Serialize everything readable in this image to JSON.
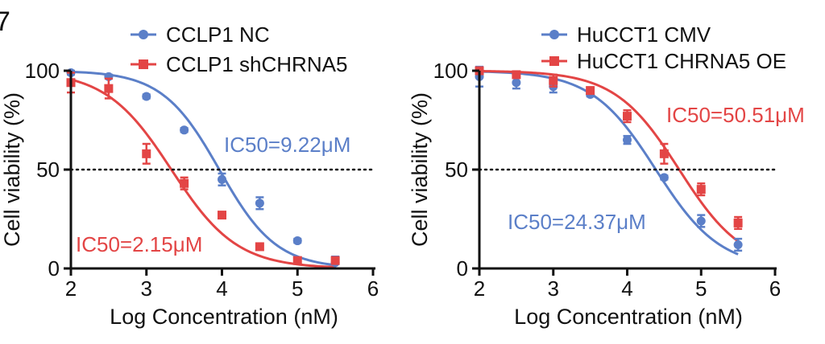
{
  "panel_label": "7",
  "chart_data": [
    {
      "type": "scatter",
      "title": "",
      "xlabel": "Log Concentration (nM)",
      "ylabel": "Cell viability (%)",
      "xlim": [
        2,
        6
      ],
      "ylim": [
        0,
        100
      ],
      "x_ticks": [
        "2",
        "3",
        "4",
        "5",
        "6"
      ],
      "y_ticks": [
        "0",
        "50",
        "100"
      ],
      "reference_line": {
        "y": 50,
        "style": "dotted"
      },
      "legend_position": "top",
      "series": [
        {
          "name": "CCLP1 NC",
          "color": "#5b7fc8",
          "marker": "circle",
          "x": [
            2,
            2.5,
            3,
            3.5,
            4,
            4.5,
            5,
            5.5
          ],
          "y": [
            99,
            97,
            87,
            70,
            45,
            33,
            14,
            3
          ],
          "err": [
            1,
            1,
            1,
            1,
            3,
            3,
            1,
            3
          ],
          "fit": {
            "logIC50": 3.965,
            "hill": 1.15,
            "top": 100,
            "bottom": 0
          }
        },
        {
          "name": "CCLP1 shCHRNA5",
          "color": "#e34545",
          "marker": "square",
          "x": [
            2,
            2.5,
            3,
            3.5,
            4,
            4.5,
            5,
            5.5
          ],
          "y": [
            94,
            91,
            58,
            43,
            27,
            11,
            4,
            4
          ],
          "err": [
            5,
            5,
            5,
            3,
            1,
            1,
            1,
            1
          ],
          "fit": {
            "logIC50": 3.33,
            "hill": 1.0,
            "top": 100,
            "bottom": 0
          }
        }
      ],
      "annotations": [
        {
          "text": "IC50=9.22μM",
          "series": "CCLP1 NC"
        },
        {
          "text": "IC50=2.15μM",
          "series": "CCLP1 shCHRNA5"
        }
      ]
    },
    {
      "type": "scatter",
      "title": "",
      "xlabel": "Log Concentration (nM)",
      "ylabel": "Cell viability (%)",
      "xlim": [
        2,
        6
      ],
      "ylim": [
        0,
        100
      ],
      "x_ticks": [
        "2",
        "3",
        "4",
        "5",
        "6"
      ],
      "y_ticks": [
        "0",
        "50",
        "100"
      ],
      "reference_line": {
        "y": 50,
        "style": "dotted"
      },
      "legend_position": "top-right",
      "series": [
        {
          "name": "HuCCT1 CMV",
          "color": "#5b7fc8",
          "marker": "circle",
          "x": [
            2,
            2.5,
            3,
            3.5,
            4,
            4.5,
            5,
            5.5
          ],
          "y": [
            97,
            94,
            92,
            88,
            65,
            46,
            24,
            12
          ],
          "err": [
            5,
            3,
            3,
            1,
            2,
            1,
            3,
            3
          ],
          "fit": {
            "logIC50": 4.387,
            "hill": 1.0,
            "top": 100,
            "bottom": 0
          }
        },
        {
          "name": "HuCCT1 CHRNA5 OE",
          "color": "#e34545",
          "marker": "square",
          "x": [
            2,
            2.5,
            3,
            3.5,
            4,
            4.5,
            5,
            5.5
          ],
          "y": [
            100,
            98,
            95,
            90,
            77,
            58,
            40,
            23
          ],
          "err": [
            1,
            1,
            3,
            1,
            3,
            5,
            3,
            3
          ],
          "fit": {
            "logIC50": 4.703,
            "hill": 1.0,
            "top": 100,
            "bottom": 0
          }
        }
      ],
      "annotations": [
        {
          "text": "IC50=50.51μM",
          "series": "HuCCT1 CHRNA5 OE"
        },
        {
          "text": "IC50=24.37μM",
          "series": "HuCCT1 CMV"
        }
      ]
    }
  ]
}
